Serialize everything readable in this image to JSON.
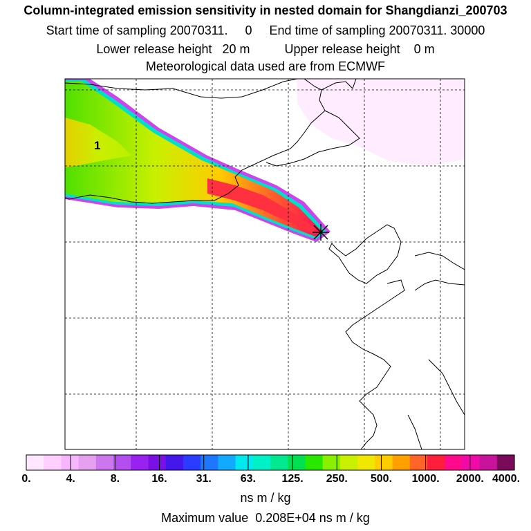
{
  "header": {
    "title": "Column-integrated emission sensitivity in nested domain for Shangdianzi_200703",
    "sampling_line": "Start time of sampling 20070311.     0     End time of sampling 20070311. 30000",
    "release_line": "Lower release height   20 m          Upper release height    0 m",
    "met_line": "Meteorological data used are from ECMWF"
  },
  "map": {
    "release_label": "1",
    "release_site_marker": "x-cross-marker"
  },
  "colorbar": {
    "colors": [
      "#ffe8ff",
      "#ffd0ff",
      "#f7b7ff",
      "#e6a0f0",
      "#cc77ee",
      "#b44ef0",
      "#9922f0",
      "#7a10e6",
      "#4418ea",
      "#2a3cff",
      "#1e78ff",
      "#12aaff",
      "#00e8f0",
      "#00f0c8",
      "#00e890",
      "#00e050",
      "#28e800",
      "#88f000",
      "#c8f000",
      "#f0e800",
      "#ffcc00",
      "#ffa000",
      "#ff6428",
      "#ff1e3c",
      "#ff0a8c",
      "#f00aa8",
      "#c8149c",
      "#7a0a5a"
    ],
    "tick_labels": [
      "0.",
      "4.",
      "8.",
      "16.",
      "31.",
      "63.",
      "125.",
      "250.",
      "500.",
      "1000.",
      "2000.",
      "4000."
    ],
    "units": "ns m / kg"
  },
  "footer": {
    "max_value": "Maximum value  0.208E+04 ns m / kg"
  }
}
